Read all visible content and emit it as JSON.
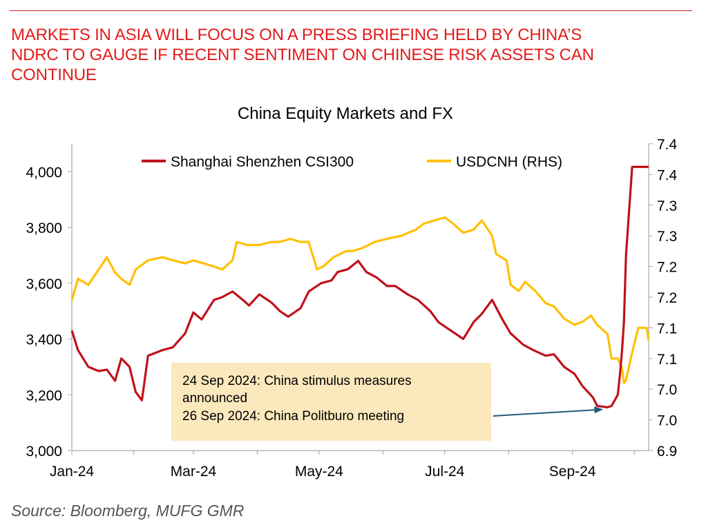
{
  "headline": {
    "line1": "MARKETS IN ASIA WILL FOCUS ON A PRESS BRIEFING HELD BY CHINA’S",
    "line2": "NDRC TO GAUGE IF RECENT SENTIMENT ON CHINESE RISK ASSETS CAN",
    "line3": "CONTINUE"
  },
  "source": "Source: Bloomberg, MUFG GMR",
  "colors": {
    "headline": "#e31b1b",
    "csi300": "#c0111a",
    "usdcnh": "#ffc000",
    "annotation_box": "#fbe9bd",
    "arrow": "#1f5c7a"
  },
  "chart_data": {
    "type": "line",
    "title": "China Equity Markets and FX",
    "x_ticks": [
      "Jan-24",
      "Mar-24",
      "May-24",
      "Jul-24",
      "Sep-24"
    ],
    "xlim": [
      "2024-01-02",
      "2024-10-08"
    ],
    "y_left": {
      "ylim": [
        3000,
        4100
      ],
      "ticks": [
        "3,000",
        "3,200",
        "3,400",
        "3,600",
        "3,800",
        "4,000"
      ],
      "tick_values": [
        3000,
        3200,
        3400,
        3600,
        3800,
        4000
      ]
    },
    "y_right": {
      "ylim": [
        6.9,
        7.4
      ],
      "ticks": [
        "6.9",
        "7.0",
        "7.0",
        "7.1",
        "7.1",
        "7.2",
        "7.2",
        "7.3",
        "7.3",
        "7.4",
        "7.4"
      ],
      "tick_values": [
        6.9,
        6.95,
        7.0,
        7.05,
        7.1,
        7.15,
        7.2,
        7.25,
        7.3,
        7.35,
        7.4
      ]
    },
    "legend": {
      "placement": "top",
      "items": [
        "Shanghai Shenzhen CSI300",
        "USDCNH (RHS)"
      ]
    },
    "grid": false,
    "series": [
      {
        "name": "Shanghai Shenzhen CSI300",
        "axis": "left",
        "color": "#c0111a",
        "points": [
          [
            "2024-01-02",
            3430
          ],
          [
            "2024-01-05",
            3360
          ],
          [
            "2024-01-10",
            3300
          ],
          [
            "2024-01-15",
            3285
          ],
          [
            "2024-01-19",
            3290
          ],
          [
            "2024-01-23",
            3250
          ],
          [
            "2024-01-26",
            3330
          ],
          [
            "2024-01-30",
            3300
          ],
          [
            "2024-02-02",
            3210
          ],
          [
            "2024-02-05",
            3180
          ],
          [
            "2024-02-08",
            3340
          ],
          [
            "2024-02-15",
            3360
          ],
          [
            "2024-02-20",
            3370
          ],
          [
            "2024-02-26",
            3420
          ],
          [
            "2024-03-01",
            3495
          ],
          [
            "2024-03-05",
            3470
          ],
          [
            "2024-03-11",
            3540
          ],
          [
            "2024-03-15",
            3550
          ],
          [
            "2024-03-20",
            3570
          ],
          [
            "2024-03-25",
            3540
          ],
          [
            "2024-03-28",
            3520
          ],
          [
            "2024-04-02",
            3560
          ],
          [
            "2024-04-08",
            3530
          ],
          [
            "2024-04-12",
            3500
          ],
          [
            "2024-04-16",
            3480
          ],
          [
            "2024-04-22",
            3510
          ],
          [
            "2024-04-26",
            3570
          ],
          [
            "2024-05-02",
            3600
          ],
          [
            "2024-05-07",
            3610
          ],
          [
            "2024-05-10",
            3640
          ],
          [
            "2024-05-15",
            3650
          ],
          [
            "2024-05-20",
            3680
          ],
          [
            "2024-05-24",
            3640
          ],
          [
            "2024-05-29",
            3620
          ],
          [
            "2024-06-03",
            3590
          ],
          [
            "2024-06-07",
            3590
          ],
          [
            "2024-06-13",
            3560
          ],
          [
            "2024-06-18",
            3540
          ],
          [
            "2024-06-24",
            3500
          ],
          [
            "2024-06-28",
            3460
          ],
          [
            "2024-07-04",
            3430
          ],
          [
            "2024-07-10",
            3400
          ],
          [
            "2024-07-15",
            3460
          ],
          [
            "2024-07-19",
            3490
          ],
          [
            "2024-07-24",
            3540
          ],
          [
            "2024-07-29",
            3470
          ],
          [
            "2024-08-02",
            3420
          ],
          [
            "2024-08-08",
            3380
          ],
          [
            "2024-08-13",
            3360
          ],
          [
            "2024-08-19",
            3340
          ],
          [
            "2024-08-23",
            3345
          ],
          [
            "2024-08-28",
            3300
          ],
          [
            "2024-09-02",
            3275
          ],
          [
            "2024-09-06",
            3230
          ],
          [
            "2024-09-11",
            3190
          ],
          [
            "2024-09-13",
            3160
          ],
          [
            "2024-09-18",
            3155
          ],
          [
            "2024-09-20",
            3160
          ],
          [
            "2024-09-23",
            3200
          ],
          [
            "2024-09-24",
            3270
          ],
          [
            "2024-09-25",
            3350
          ],
          [
            "2024-09-26",
            3460
          ],
          [
            "2024-09-27",
            3700
          ],
          [
            "2024-09-30",
            4017
          ],
          [
            "2024-10-08",
            4017
          ]
        ]
      },
      {
        "name": "USDCNH (RHS)",
        "axis": "right",
        "color": "#ffc000",
        "points": [
          [
            "2024-01-02",
            7.145
          ],
          [
            "2024-01-05",
            7.18
          ],
          [
            "2024-01-10",
            7.17
          ],
          [
            "2024-01-15",
            7.195
          ],
          [
            "2024-01-19",
            7.215
          ],
          [
            "2024-01-23",
            7.19
          ],
          [
            "2024-01-26",
            7.18
          ],
          [
            "2024-01-30",
            7.17
          ],
          [
            "2024-02-02",
            7.195
          ],
          [
            "2024-02-08",
            7.21
          ],
          [
            "2024-02-15",
            7.215
          ],
          [
            "2024-02-20",
            7.21
          ],
          [
            "2024-02-26",
            7.205
          ],
          [
            "2024-03-01",
            7.21
          ],
          [
            "2024-03-06",
            7.205
          ],
          [
            "2024-03-11",
            7.2
          ],
          [
            "2024-03-15",
            7.195
          ],
          [
            "2024-03-20",
            7.21
          ],
          [
            "2024-03-22",
            7.24
          ],
          [
            "2024-03-27",
            7.235
          ],
          [
            "2024-04-02",
            7.235
          ],
          [
            "2024-04-08",
            7.24
          ],
          [
            "2024-04-12",
            7.24
          ],
          [
            "2024-04-17",
            7.245
          ],
          [
            "2024-04-22",
            7.24
          ],
          [
            "2024-04-26",
            7.24
          ],
          [
            "2024-04-30",
            7.195
          ],
          [
            "2024-05-03",
            7.2
          ],
          [
            "2024-05-08",
            7.215
          ],
          [
            "2024-05-14",
            7.225
          ],
          [
            "2024-05-17",
            7.225
          ],
          [
            "2024-05-22",
            7.23
          ],
          [
            "2024-05-28",
            7.24
          ],
          [
            "2024-06-03",
            7.245
          ],
          [
            "2024-06-10",
            7.25
          ],
          [
            "2024-06-17",
            7.26
          ],
          [
            "2024-06-21",
            7.27
          ],
          [
            "2024-06-26",
            7.275
          ],
          [
            "2024-07-01",
            7.28
          ],
          [
            "2024-07-05",
            7.27
          ],
          [
            "2024-07-10",
            7.255
          ],
          [
            "2024-07-15",
            7.26
          ],
          [
            "2024-07-19",
            7.275
          ],
          [
            "2024-07-24",
            7.25
          ],
          [
            "2024-07-26",
            7.22
          ],
          [
            "2024-07-31",
            7.21
          ],
          [
            "2024-08-02",
            7.17
          ],
          [
            "2024-08-06",
            7.16
          ],
          [
            "2024-08-09",
            7.175
          ],
          [
            "2024-08-14",
            7.16
          ],
          [
            "2024-08-19",
            7.14
          ],
          [
            "2024-08-23",
            7.135
          ],
          [
            "2024-08-28",
            7.115
          ],
          [
            "2024-09-02",
            7.105
          ],
          [
            "2024-09-06",
            7.11
          ],
          [
            "2024-09-10",
            7.12
          ],
          [
            "2024-09-13",
            7.105
          ],
          [
            "2024-09-18",
            7.09
          ],
          [
            "2024-09-20",
            7.05
          ],
          [
            "2024-09-23",
            7.05
          ],
          [
            "2024-09-25",
            7.035
          ],
          [
            "2024-09-26",
            7.01
          ],
          [
            "2024-09-27",
            7.015
          ],
          [
            "2024-09-30",
            7.06
          ],
          [
            "2024-10-03",
            7.1
          ],
          [
            "2024-10-07",
            7.1
          ],
          [
            "2024-10-08",
            7.08
          ]
        ]
      }
    ],
    "annotation": {
      "lines": [
        "24 Sep 2024: China stimulus measures",
        "announced",
        "26 Sep 2024: China Politburo meeting"
      ],
      "points_to": [
        "2024-09-18",
        3155
      ]
    }
  }
}
